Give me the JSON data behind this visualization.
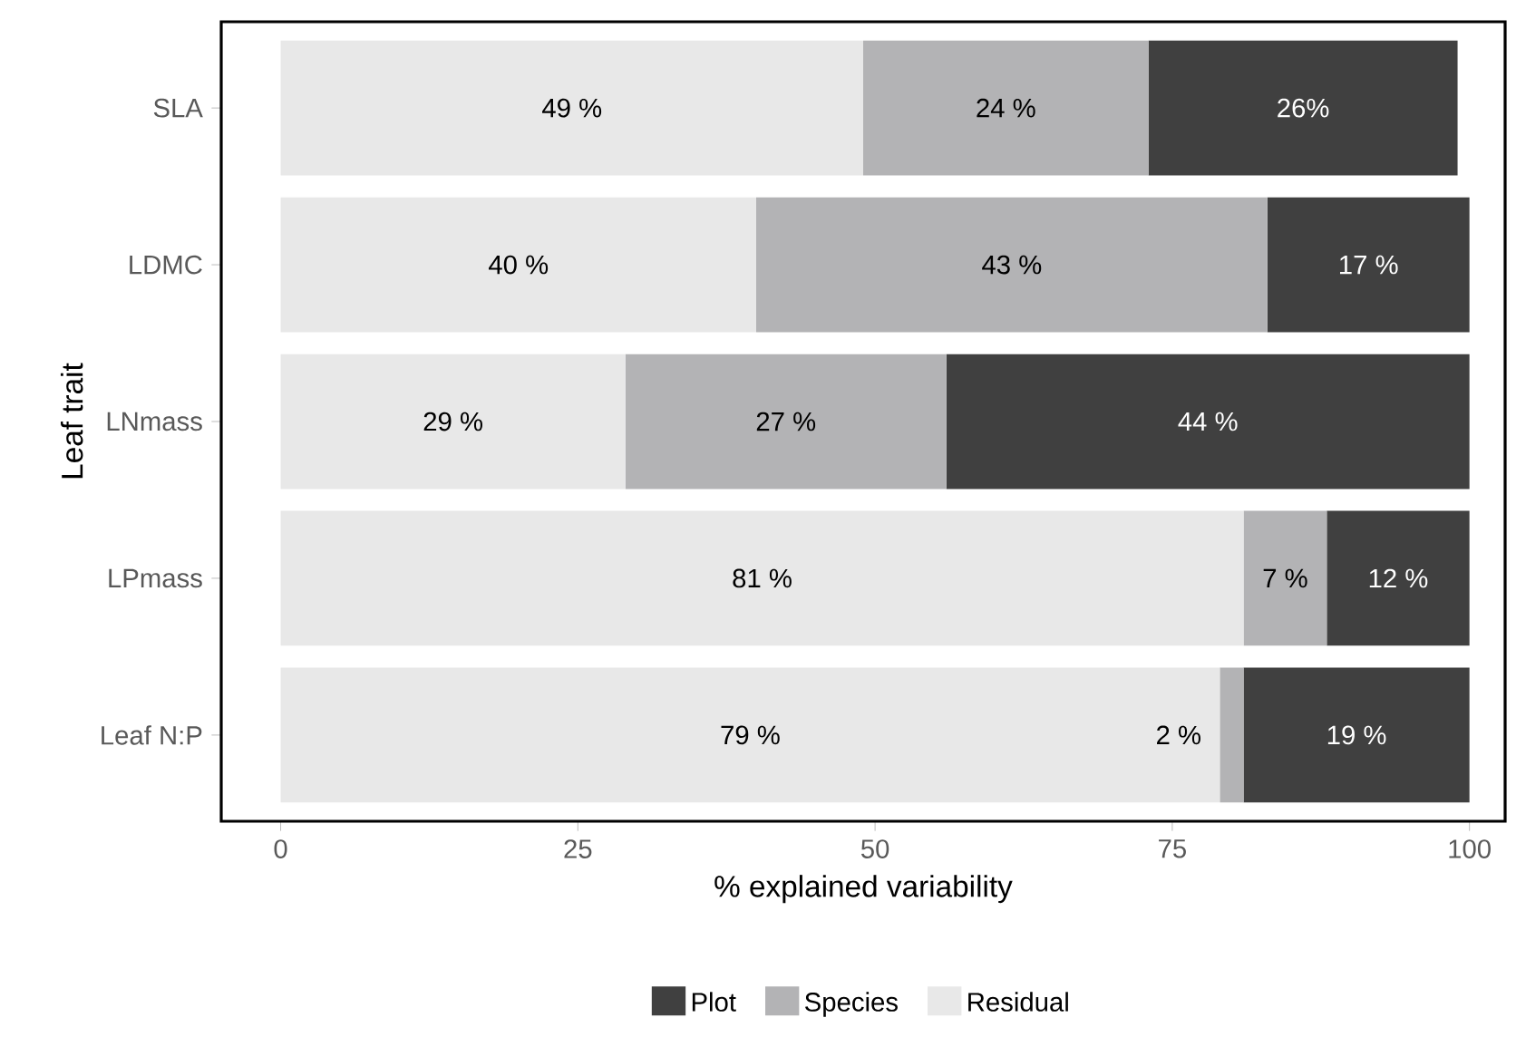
{
  "chart_data": {
    "type": "bar",
    "orientation": "horizontal",
    "stacked": true,
    "xlabel": "% explained variability",
    "ylabel": "Leaf trait",
    "categories": [
      "SLA",
      "LDMC",
      "LNmass",
      "LPmass",
      "Leaf N:P"
    ],
    "series": [
      {
        "name": "Residual",
        "color": "#e8e8e8",
        "values": [
          49,
          40,
          29,
          81,
          79
        ],
        "value_labels": [
          "49 %",
          "40 %",
          "29 %",
          "81 %",
          "79 %"
        ]
      },
      {
        "name": "Species",
        "color": "#b3b3b5",
        "values": [
          24,
          43,
          27,
          7,
          2
        ],
        "value_labels": [
          "24 %",
          "43 %",
          "27 %",
          "7 %",
          "2 %"
        ]
      },
      {
        "name": "Plot",
        "color": "#404040",
        "values": [
          26,
          17,
          44,
          12,
          19
        ],
        "value_labels": [
          "26%",
          "17 %",
          "44 %",
          "12 %",
          "19 %"
        ]
      }
    ],
    "xlim": [
      -5,
      103
    ],
    "xticks": [
      0,
      25,
      50,
      75,
      100
    ],
    "grid": false,
    "legend": "bottom"
  }
}
